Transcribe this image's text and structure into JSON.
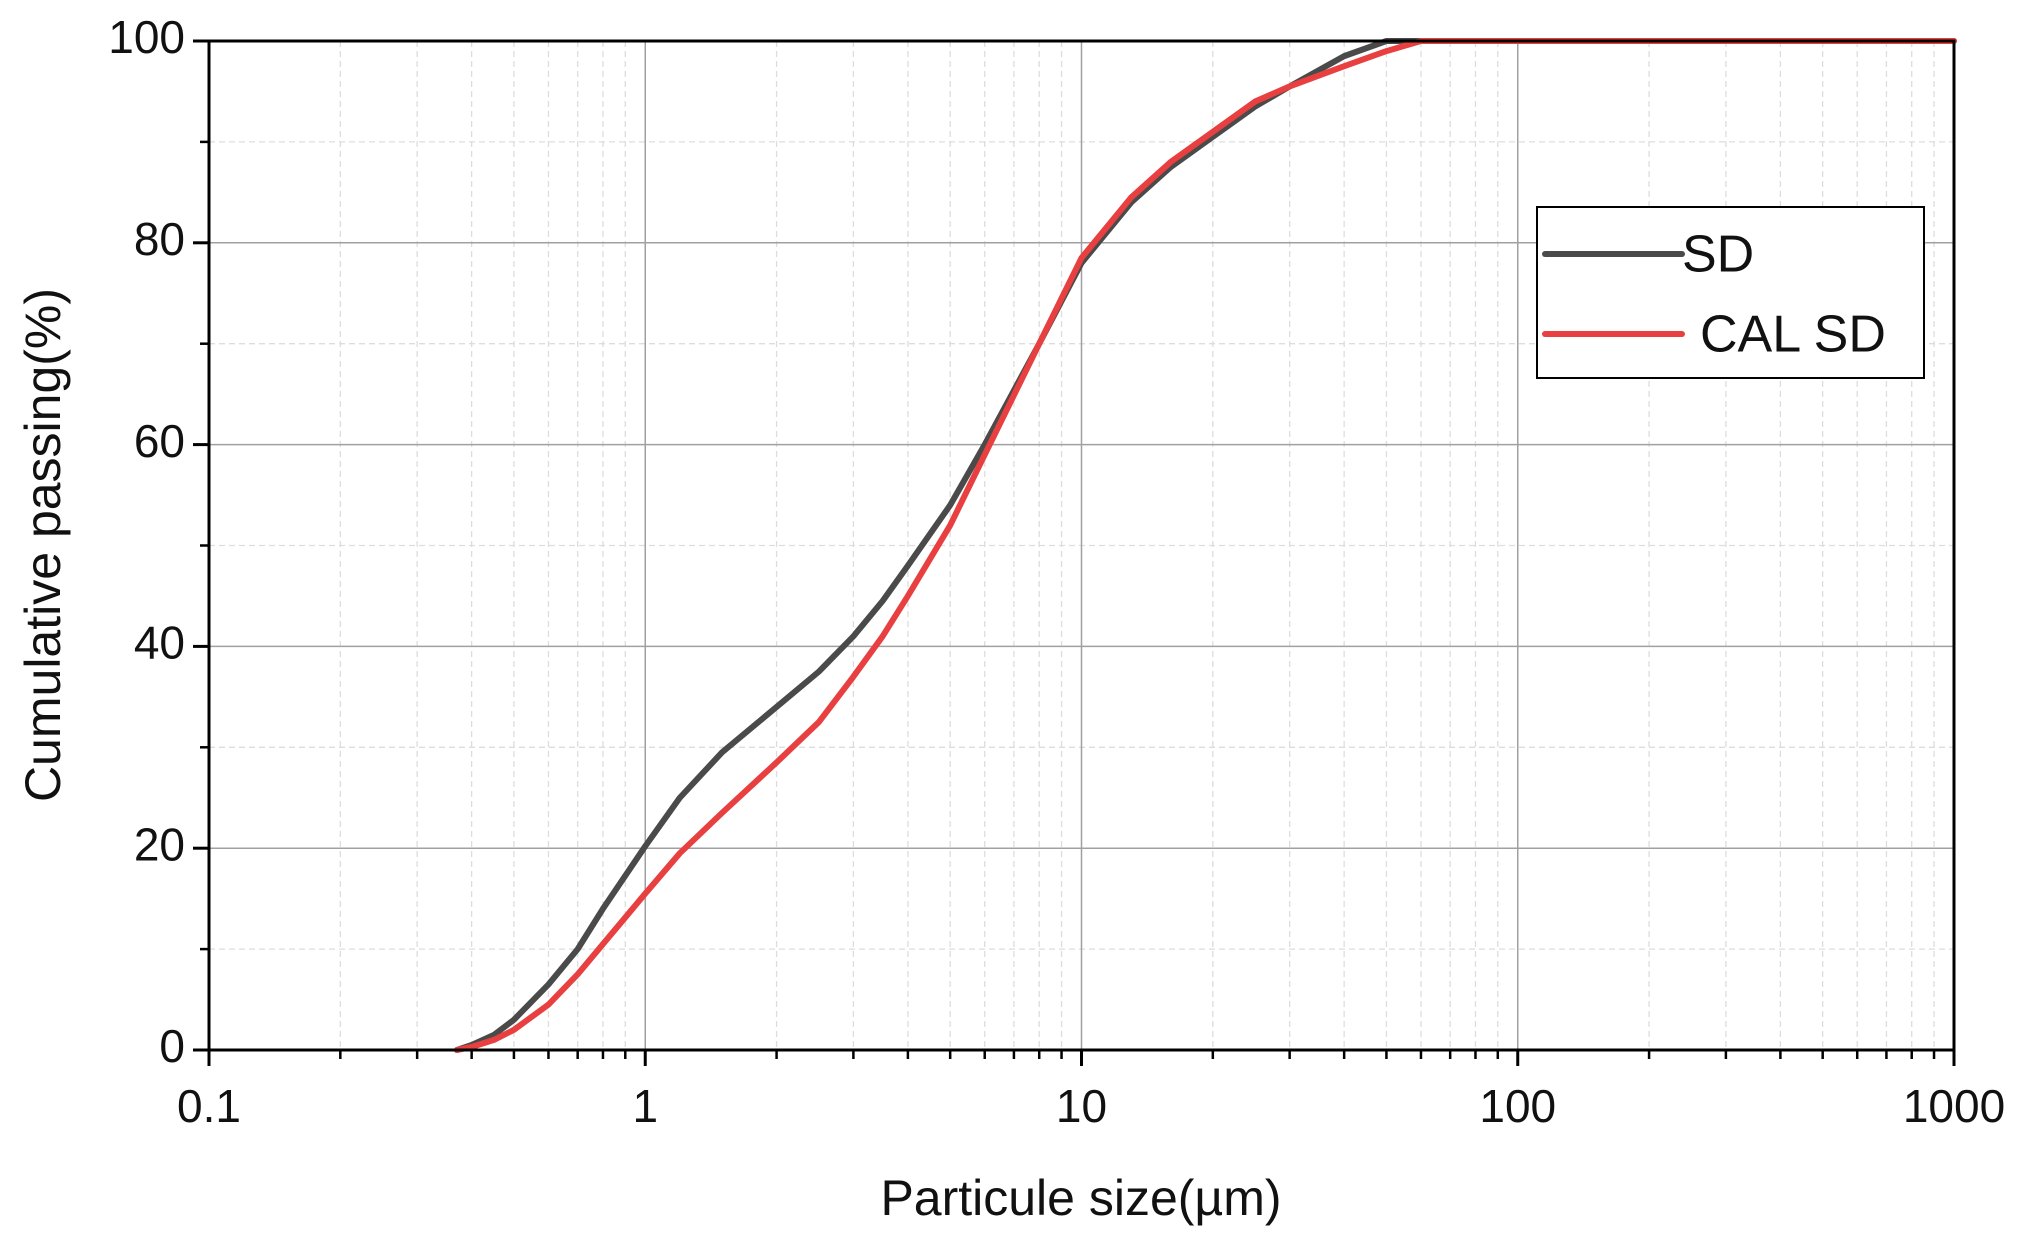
{
  "chart_data": {
    "type": "line",
    "x_label": "Particule size(µm)",
    "y_label": "Cumulative passing(%)",
    "x": [
      0.37,
      0.4,
      0.45,
      0.5,
      0.6,
      0.7,
      0.8,
      1,
      1.2,
      1.5,
      2,
      2.5,
      3,
      3.5,
      4,
      5,
      6,
      8,
      10,
      13,
      16,
      20,
      25,
      30,
      40,
      50,
      60,
      100,
      1000
    ],
    "series": [
      {
        "name": "SD",
        "color": "#4a4a4a",
        "values": [
          0,
          0.5,
          1.5,
          3,
          6.5,
          10,
          14,
          20.2,
          25,
          29.5,
          34,
          37.5,
          41,
          44.5,
          48,
          54,
          60,
          70,
          78,
          84,
          87.5,
          90.5,
          93.5,
          95.5,
          98.5,
          100,
          100,
          100,
          100
        ]
      },
      {
        "name": "CAL SD",
        "color": "#e84040",
        "values": [
          0,
          0.3,
          1,
          2,
          4.5,
          7.5,
          10.5,
          15.5,
          19.5,
          23.5,
          28.5,
          32.5,
          37,
          41,
          45,
          52,
          59,
          70,
          78.5,
          84.5,
          88,
          91,
          94,
          95.5,
          97.5,
          99,
          100,
          100,
          100
        ]
      }
    ],
    "xlim": [
      0.1,
      1000
    ],
    "xticks": [
      0.1,
      1,
      10,
      100,
      1000
    ],
    "xscale": "log",
    "ylim": [
      0,
      100
    ],
    "yticks": [
      0,
      20,
      40,
      60,
      80,
      100
    ],
    "grid": true,
    "legend": "upper right"
  }
}
